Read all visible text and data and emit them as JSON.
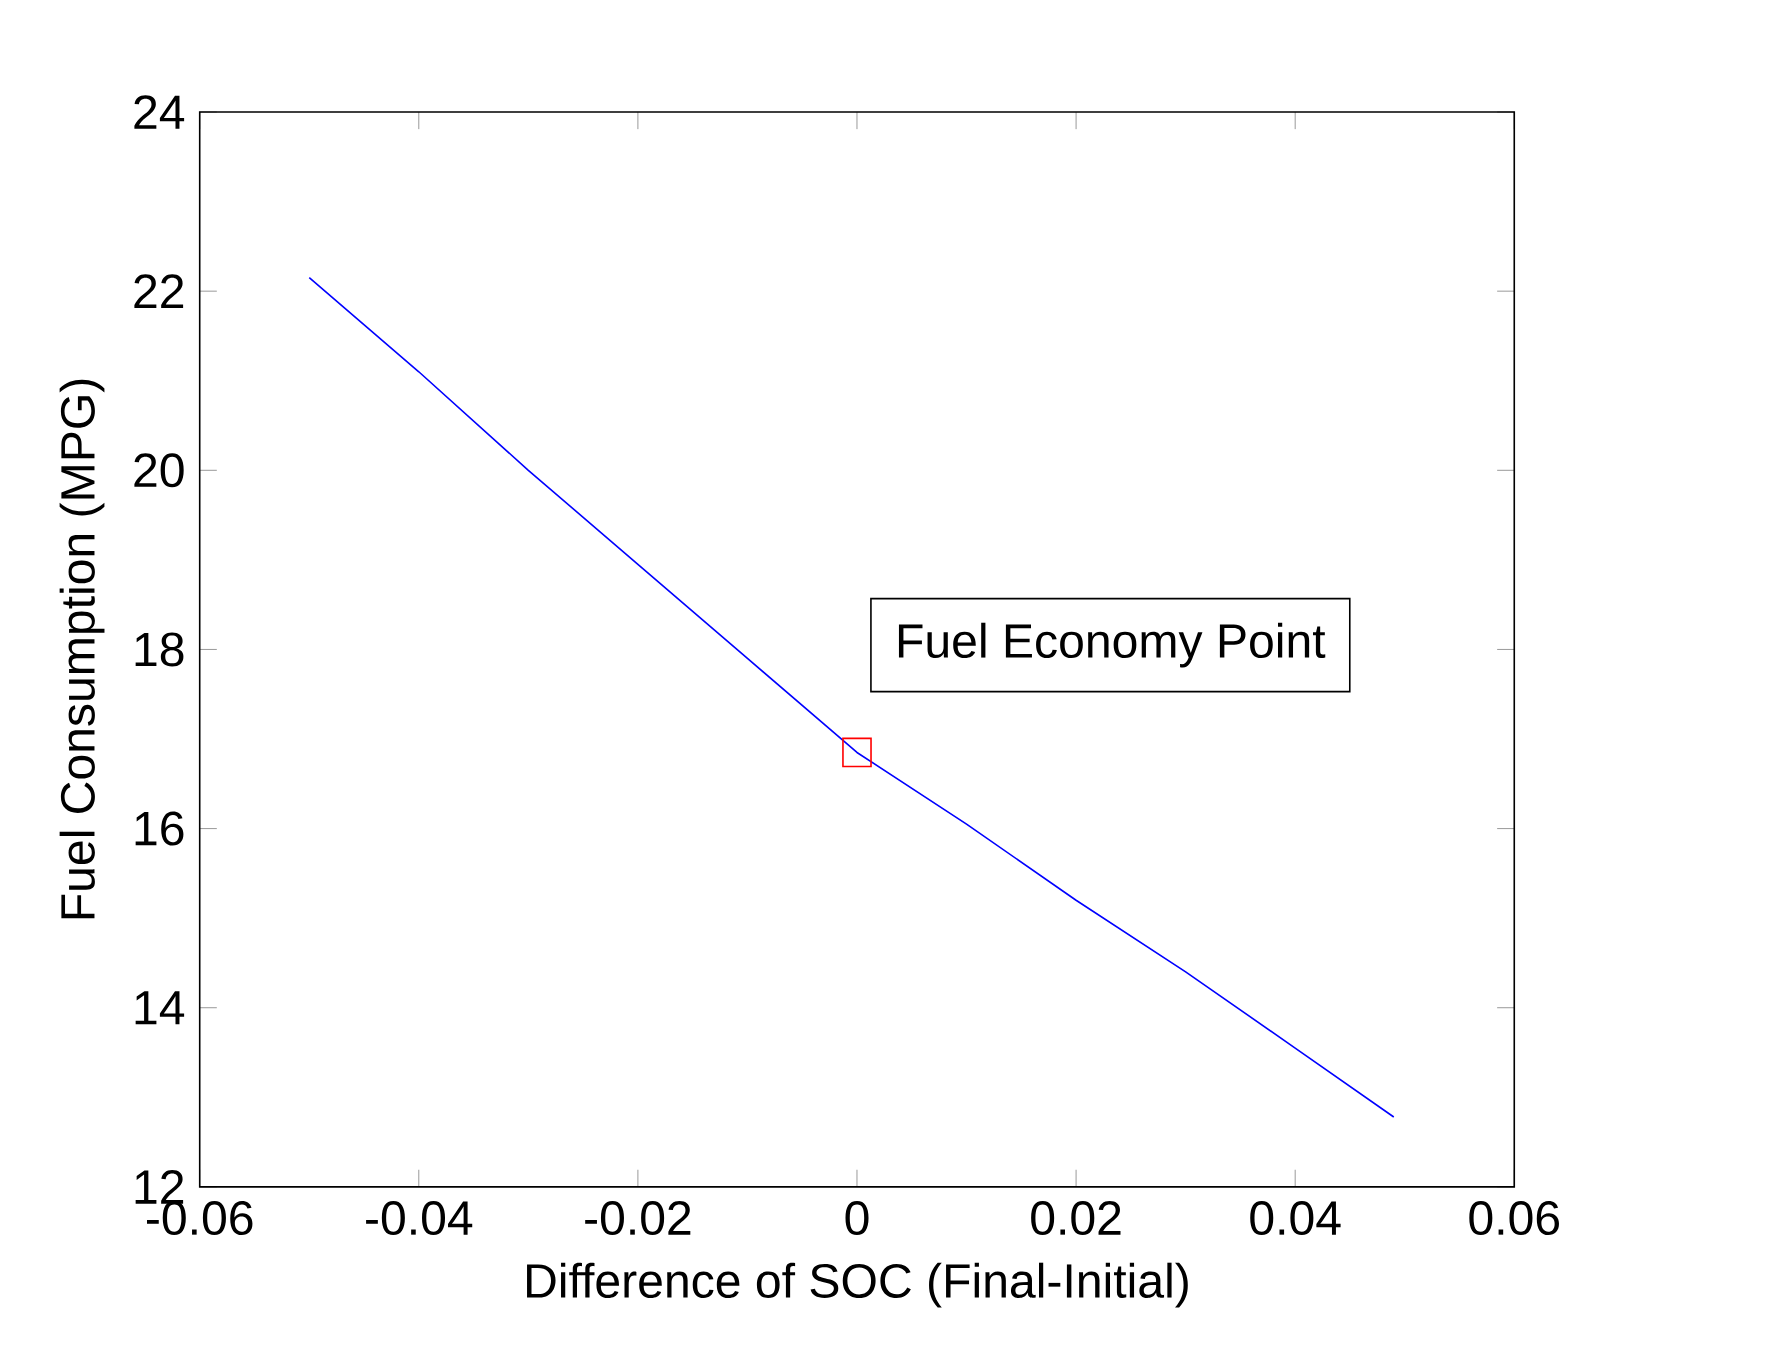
{
  "chart_data": {
    "type": "line",
    "xlabel": "Difference of SOC (Final-Initial)",
    "ylabel": "Fuel Consumption (MPG)",
    "xlim": [
      -0.06,
      0.06
    ],
    "xticks": [
      -0.06,
      -0.04,
      -0.02,
      0,
      0.02,
      0.04,
      0.06
    ],
    "ylim": [
      12,
      24
    ],
    "yticks": [
      12,
      14,
      16,
      18,
      20,
      22,
      24
    ],
    "grid": false,
    "series": [
      {
        "color": "#0000ff",
        "x": [
          -0.05,
          -0.04,
          -0.03,
          -0.02,
          -0.01,
          0,
          0.01,
          0.02,
          0.03,
          0.04,
          0.049
        ],
        "values": [
          22.15,
          21.1,
          20.0,
          18.95,
          17.9,
          16.85,
          16.05,
          15.2,
          14.4,
          13.55,
          12.78
        ]
      },
      {
        "type": "scatter",
        "color": "#ff0000",
        "marker": "square",
        "x": [
          0
        ],
        "values": [
          16.85
        ]
      }
    ],
    "annotations": [
      "Fuel Economy Point"
    ]
  }
}
